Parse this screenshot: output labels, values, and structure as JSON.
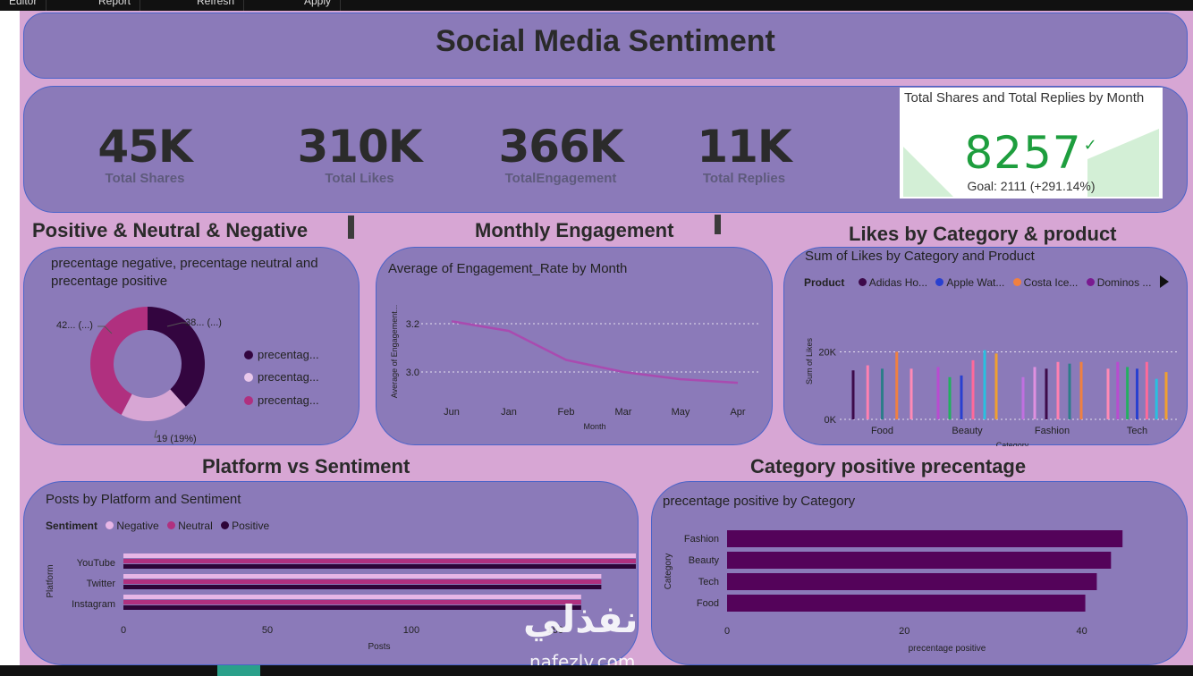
{
  "toolbar": {
    "items": [
      "Editor",
      "Report",
      "Refresh",
      "Apply"
    ]
  },
  "dashboard": {
    "title": "Social Media Sentiment"
  },
  "kpis": [
    {
      "value": "45K",
      "label": "Total Shares"
    },
    {
      "value": "310K",
      "label": "Total Likes"
    },
    {
      "value": "366K",
      "label": "TotalEngagement"
    },
    {
      "value": "11K",
      "label": "Total Replies"
    }
  ],
  "goal_card": {
    "title": "Total Shares and Total Replies by Month",
    "value": "8257",
    "check": "✓",
    "goal": "Goal: 2111 (+291.14%)",
    "accent": "#1e9e3e"
  },
  "sections": {
    "sentiment": "Positive & Neutral & Negative",
    "monthly": "Monthly Engagement",
    "likes": "Likes by Category & product",
    "platform": "Platform vs Sentiment",
    "category": "Category positive precentage"
  },
  "watermark": {
    "arabic": "نفذلي",
    "latin": "nafezly.com"
  },
  "chart_data": [
    {
      "id": "donut",
      "type": "pie",
      "title": "precentage negative, precentage neutral and precentage positive",
      "slices": [
        {
          "name": "precentag...",
          "value": 38,
          "label": "38... (...)",
          "color": "#33053f"
        },
        {
          "name": "precentag...",
          "value": 19,
          "label": "19 (19%)",
          "color": "#d7a6d4"
        },
        {
          "name": "precentag...",
          "value": 42,
          "label": "42... (...)",
          "color": "#b0307f"
        }
      ]
    },
    {
      "id": "line",
      "type": "line",
      "title": "Average of Engagement_Rate by Month",
      "xlabel": "Month",
      "ylabel": "Average of Engagement...",
      "categories": [
        "Jun",
        "Jan",
        "Feb",
        "Mar",
        "May",
        "Apr"
      ],
      "values": [
        3.21,
        3.17,
        3.05,
        3.0,
        2.97,
        2.955
      ],
      "yticks": [
        3.0,
        3.2
      ],
      "ytick_labels": [
        "3.0",
        "3.2"
      ],
      "ylim": [
        2.9,
        3.3
      ],
      "color": "#a94bb0"
    },
    {
      "id": "likes",
      "type": "bar",
      "title": "Sum of Likes by Category and Product",
      "xlabel": "Category",
      "ylabel": "Sum of Likes",
      "legend_title": "Product",
      "legend": [
        {
          "name": "Adidas Ho...",
          "color": "#3d0a4a"
        },
        {
          "name": "Apple Wat...",
          "color": "#2940d0"
        },
        {
          "name": "Costa Ice...",
          "color": "#f08040"
        },
        {
          "name": "Dominos ...",
          "color": "#7a1a90"
        }
      ],
      "categories": [
        "Food",
        "Beauty",
        "Fashion",
        "Tech"
      ],
      "yticks": [
        0,
        20000
      ],
      "ytick_labels": [
        "0K",
        "20K"
      ],
      "ylim": [
        0,
        27000
      ],
      "bar_colors": [
        "#3d0a4a",
        "#ff80b0",
        "#2d7d8a",
        "#f08040",
        "#ff8ab5",
        "#b94bd0",
        "#22b060",
        "#2940d0",
        "#ff6a9a",
        "#29c0e0",
        "#f0a030",
        "#c070e0",
        "#e090e0"
      ],
      "groups": [
        [
          14500,
          16000,
          15000,
          20000,
          15000
        ],
        [
          15500,
          12500,
          13000,
          17500,
          20500,
          19500
        ],
        [
          12500,
          15500,
          15000,
          17000,
          16500,
          17000
        ],
        [
          15000,
          17000,
          15500,
          15000,
          17000,
          12000,
          14000
        ]
      ]
    },
    {
      "id": "platform",
      "type": "bar",
      "orientation": "horizontal",
      "title": "Posts by Platform and Sentiment",
      "xlabel": "Posts",
      "ylabel": "Platform",
      "legend_title": "Sentiment",
      "categories": [
        "YouTube",
        "Twitter",
        "Instagram"
      ],
      "series": [
        {
          "name": "Negative",
          "color": "#e7b6e6",
          "values": [
            178,
            166,
            159
          ]
        },
        {
          "name": "Neutral",
          "color": "#b0307f",
          "values": [
            178,
            166,
            159
          ]
        },
        {
          "name": "Positive",
          "color": "#2e0438",
          "values": [
            178,
            166,
            159
          ]
        }
      ],
      "xticks": [
        0,
        50,
        100,
        150
      ],
      "xtick_labels": [
        "0",
        "50",
        "100",
        "150"
      ],
      "xlim": [
        0,
        178
      ]
    },
    {
      "id": "catpos",
      "type": "bar",
      "orientation": "horizontal",
      "title": "precentage positive by Category",
      "xlabel": "precentage positive",
      "ylabel": "Category",
      "categories": [
        "Fashion",
        "Beauty",
        "Tech",
        "Food"
      ],
      "values": [
        44.6,
        43.3,
        41.7,
        40.4
      ],
      "xticks": [
        0,
        20,
        40
      ],
      "xtick_labels": [
        "0",
        "20",
        "40"
      ],
      "xlim": [
        0,
        47
      ],
      "color": "#54035a"
    }
  ]
}
